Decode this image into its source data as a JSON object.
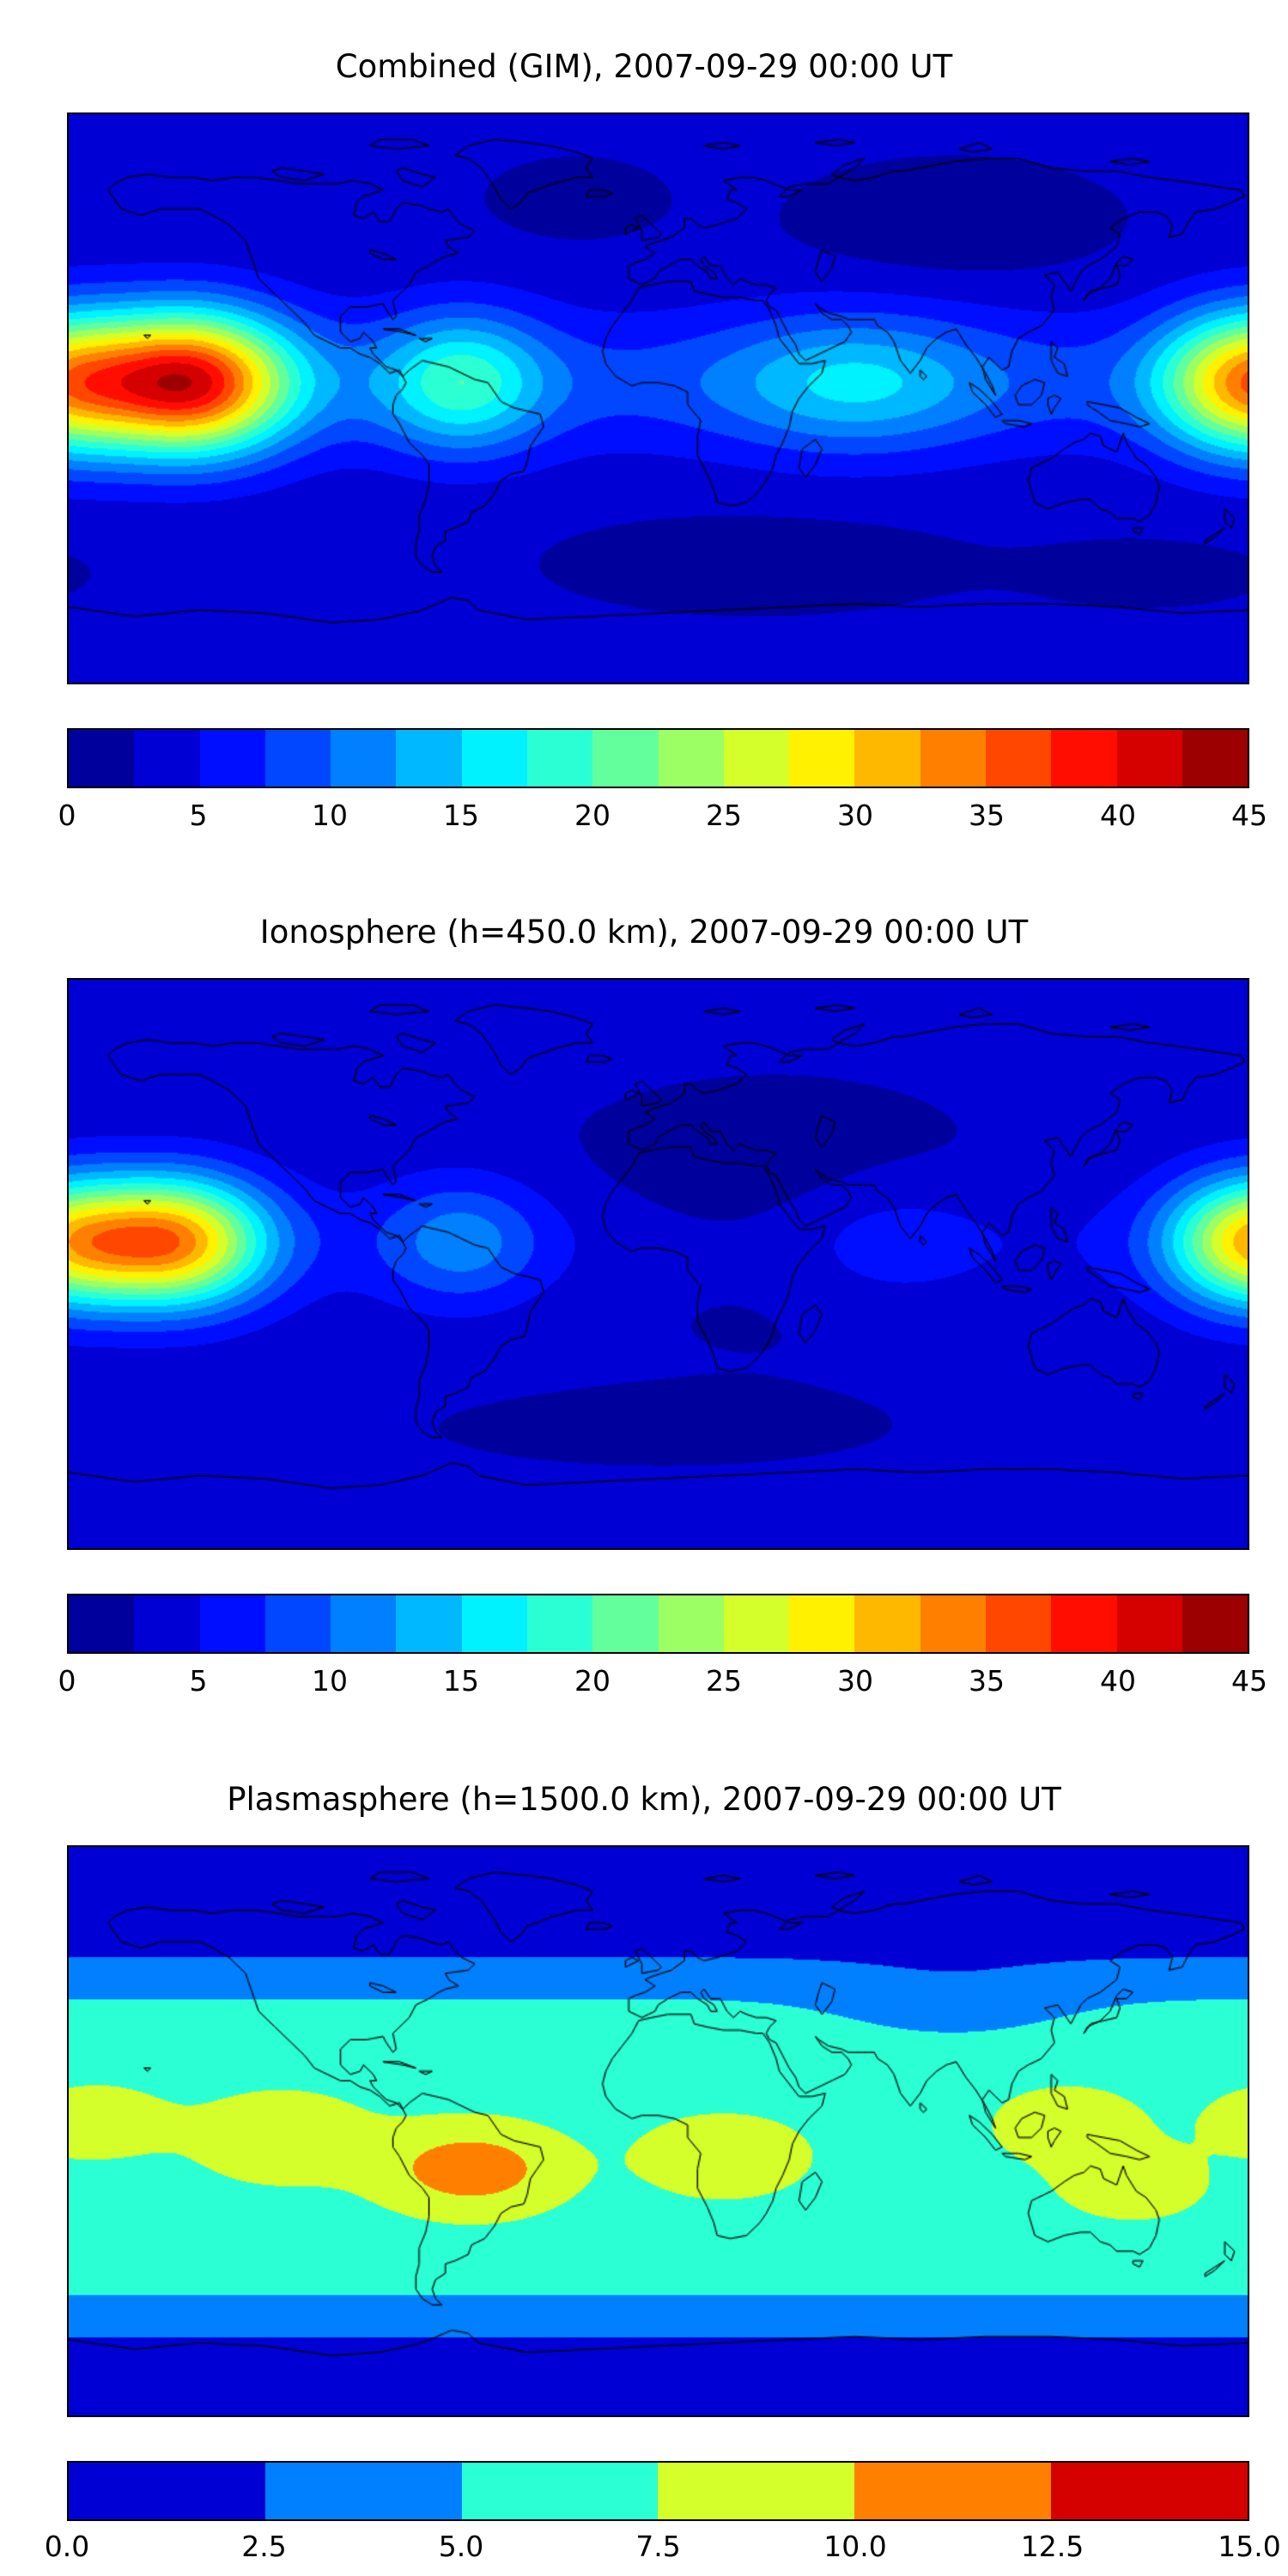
{
  "figure": {
    "background_color": "#ffffff",
    "panels": [
      {
        "title": "Combined (GIM), 2007-09-29 00:00 UT",
        "colorbar": {
          "tick_labels": [
            "0",
            "5",
            "10",
            "15",
            "20",
            "25",
            "30",
            "35",
            "40",
            "45"
          ],
          "vmin": 0,
          "vmax": 45,
          "n_bins": 18
        }
      },
      {
        "title": "Ionosphere  (h=450.0 km), 2007-09-29 00:00 UT",
        "colorbar": {
          "tick_labels": [
            "0",
            "5",
            "10",
            "15",
            "20",
            "25",
            "30",
            "35",
            "40",
            "45"
          ],
          "vmin": 0,
          "vmax": 45,
          "n_bins": 18
        }
      },
      {
        "title": "Plasmasphere (h=1500.0 km), 2007-09-29 00:00 UT",
        "colorbar": {
          "tick_labels": [
            "0.0",
            "2.5",
            "5.0",
            "7.5",
            "10.0",
            "12.5",
            "15.0"
          ],
          "vmin": 0,
          "vmax": 15,
          "n_bins": 6
        }
      }
    ]
  },
  "chart_data": [
    {
      "type": "heatmap",
      "title": "Combined (GIM), 2007-09-29 00:00 UT",
      "projection": "equirectangular",
      "lon_range": [
        -180,
        180
      ],
      "lat_range": [
        -90,
        90
      ],
      "value_range": [
        0,
        45
      ],
      "contour_step": 2.5,
      "colormap": "jet",
      "tick_labels": [
        "0",
        "5",
        "10",
        "15",
        "20",
        "25",
        "30",
        "35",
        "40",
        "45"
      ],
      "description": "Global combined TEC map. Equatorial ridge peaking ~41 over the eastern equatorial Pacific (lon ~ -143, lat ~ 5), secondary peak ~35 near the dateline, moderate enhancement ~15 over northern South America, low values < 2.5 over high-latitude Asia, the North Atlantic and the far southern ocean.",
      "field_model": {
        "model": "ridge",
        "background": 3.0,
        "ridge": {
          "lat0": 5,
          "sigma_lat": 22,
          "base": 5,
          "components": [
            {
              "lon": -143,
              "amp": 33,
              "sigma": 30
            },
            {
              "lon": 177,
              "amp": 21,
              "sigma": 25
            },
            {
              "lon": -60,
              "amp": 12,
              "sigma": 25
            },
            {
              "lon": 60,
              "amp": 8,
              "sigma": 40
            }
          ]
        },
        "blobs": [
          {
            "lon": 90,
            "lat": 55,
            "amp": -2.2,
            "slon": 45,
            "slat": 18
          },
          {
            "lon": 30,
            "lat": -52,
            "amp": -2.2,
            "slon": 55,
            "slat": 14
          },
          {
            "lon": -25,
            "lat": 63,
            "amp": -1.8,
            "slon": 25,
            "slat": 12
          },
          {
            "lon": 150,
            "lat": -55,
            "amp": -1.2,
            "slon": 40,
            "slat": 12
          }
        ]
      }
    },
    {
      "type": "heatmap",
      "title": "Ionosphere  (h=450.0 km), 2007-09-29 00:00 UT",
      "projection": "equirectangular",
      "lon_range": [
        -180,
        180
      ],
      "lat_range": [
        -90,
        90
      ],
      "value_range": [
        0,
        45
      ],
      "contour_step": 2.5,
      "colormap": "jet",
      "tick_labels": [
        "0",
        "5",
        "10",
        "15",
        "20",
        "25",
        "30",
        "35",
        "40",
        "45"
      ],
      "description": "Ionospheric TEC at h=450 km. Same morphology as combined map but weaker: peak ~33 over the eastern equatorial Pacific, ~31 near the dateline; Eurasia and Africa mostly < 2.5.",
      "field_model": {
        "model": "ridge",
        "background": 3.0,
        "ridge": {
          "lat0": 7,
          "sigma_lat": 20,
          "base": 2,
          "components": [
            {
              "lon": -148,
              "amp": 28,
              "sigma": 28
            },
            {
              "lon": 178,
              "amp": 20,
              "sigma": 24
            },
            {
              "lon": -60,
              "amp": 7,
              "sigma": 25
            },
            {
              "lon": 70,
              "amp": 3,
              "sigma": 30
            }
          ]
        },
        "blobs": [
          {
            "lon": 35,
            "lat": 15,
            "amp": -2.6,
            "slon": 65,
            "slat": 35
          },
          {
            "lon": 0,
            "lat": -52,
            "amp": -1.0,
            "slon": 80,
            "slat": 14
          }
        ]
      }
    },
    {
      "type": "heatmap",
      "title": "Plasmasphere (h=1500.0 km), 2007-09-29 00:00 UT",
      "projection": "equirectangular",
      "lon_range": [
        -180,
        180
      ],
      "lat_range": [
        -90,
        90
      ],
      "value_range": [
        0,
        15
      ],
      "contour_step": 2.5,
      "colormap": "jet",
      "tick_labels": [
        "0.0",
        "2.5",
        "5.0",
        "7.5",
        "10.0",
        "12.5",
        "15.0"
      ],
      "description": "Plasmaspheric TEC at h=1500 km. Broad equatorial band ~5-7.5 spanning all longitudes between roughly 40N and 48S, yellow-green enhancements ~8-10 over the eastern Pacific, Africa and northern Australia, orange peak ~12 over central South America; < 2.5 toward the poles.",
      "field_model": {
        "model": "band",
        "background": 0.6,
        "band": {
          "lat0": -5,
          "flat_halfwidth": 32,
          "sigma": 26,
          "amp": 6.1
        },
        "blobs": [
          {
            "lon": -57,
            "lat": -12,
            "amp": 5.0,
            "slon": 26,
            "slat": 13
          },
          {
            "lon": -115,
            "lat": -2,
            "amp": 2.2,
            "slon": 28,
            "slat": 15
          },
          {
            "lon": -172,
            "lat": 3,
            "amp": 2.0,
            "slon": 22,
            "slat": 12
          },
          {
            "lon": 20,
            "lat": -8,
            "amp": 2.4,
            "slon": 26,
            "slat": 13
          },
          {
            "lon": 125,
            "lat": 2,
            "amp": 2.0,
            "slon": 24,
            "slat": 13
          },
          {
            "lon": 145,
            "lat": -17,
            "amp": 2.2,
            "slon": 22,
            "slat": 11
          },
          {
            "lon": 90,
            "lat": 38,
            "amp": -2.0,
            "slon": 40,
            "slat": 13
          }
        ]
      }
    }
  ]
}
